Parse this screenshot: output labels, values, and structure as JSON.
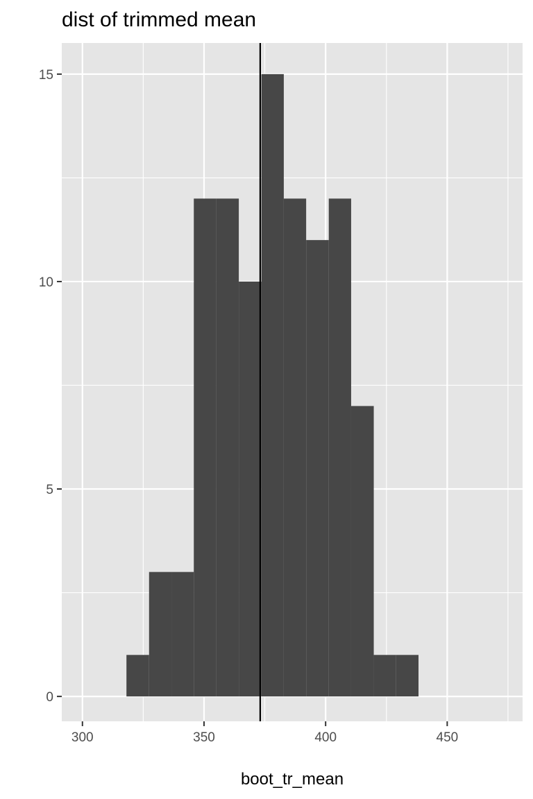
{
  "chart_data": {
    "type": "bar",
    "subtype": "histogram",
    "title": "dist of trimmed mean",
    "xlabel": "boot_tr_mean",
    "ylabel": "",
    "xlim": [
      291.5,
      481
    ],
    "ylim": [
      -0.6,
      15.75
    ],
    "x_ticks": [
      300,
      350,
      400,
      450
    ],
    "y_ticks": [
      0,
      5,
      10,
      15
    ],
    "bin_edges": [
      318.1,
      327.4,
      336.6,
      345.8,
      355.1,
      364.3,
      373.6,
      382.8,
      392.0,
      401.3,
      410.5,
      419.8,
      429.0,
      438.2
    ],
    "counts": [
      1,
      3,
      3,
      12,
      12,
      10,
      15,
      12,
      11,
      12,
      7,
      1,
      1
    ],
    "vline": 373.1,
    "grid": true,
    "legend": "none",
    "colors": {
      "panel": "#e5e5e5",
      "grid": "#ffffff",
      "bar": "#474747",
      "vline": "#000000",
      "tick_text": "#4d4d4d",
      "tick_mark": "#333333"
    }
  }
}
